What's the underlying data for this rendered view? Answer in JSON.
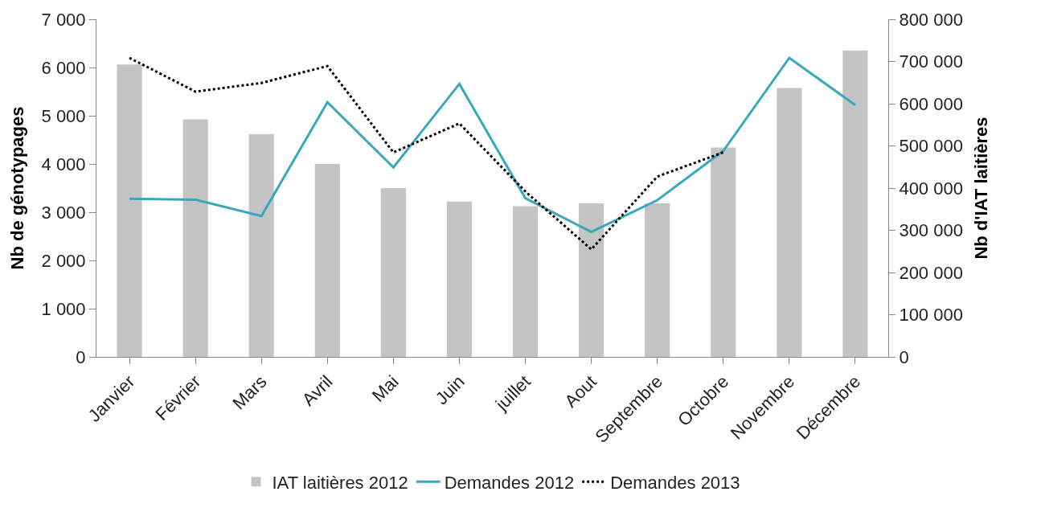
{
  "chart_data": {
    "type": "line",
    "categories": [
      "Janvier",
      "Février",
      "Mars",
      "Avril",
      "Mai",
      "Juin",
      "juillet",
      "Aout",
      "Septembre",
      "Octobre",
      "Novembre",
      "Décembre"
    ],
    "series": [
      {
        "name": "IAT laitières 2012",
        "type": "bar",
        "axis": "y2",
        "color": "#c4c4c4",
        "values": [
          693000,
          563000,
          528000,
          457000,
          400000,
          368000,
          357000,
          364000,
          364000,
          496000,
          637000,
          726000
        ]
      },
      {
        "name": "Demandes 2012",
        "color": "#3aa8bc",
        "line_style": "solid",
        "values": [
          3280,
          3260,
          2920,
          5280,
          3930,
          5660,
          3290,
          2590,
          3250,
          4270,
          6200,
          5220
        ]
      },
      {
        "name": "Demandes 2013",
        "color": "#000000",
        "line_style": "dotted",
        "values": [
          6200,
          5500,
          5680,
          6030,
          4240,
          4840,
          3430,
          2230,
          3740,
          4240,
          null,
          null
        ]
      }
    ],
    "ylabel": "Nb de génotypages",
    "y2label": "Nb d'IAT laitières",
    "ylim": [
      0,
      7000
    ],
    "yticks": [
      {
        "value": 0,
        "label": "0"
      },
      {
        "value": 1000,
        "label": "1 000"
      },
      {
        "value": 2000,
        "label": "2 000"
      },
      {
        "value": 3000,
        "label": "3 000"
      },
      {
        "value": 4000,
        "label": "4 000"
      },
      {
        "value": 5000,
        "label": "5 000"
      },
      {
        "value": 6000,
        "label": "6 000"
      },
      {
        "value": 7000,
        "label": "7 000"
      }
    ],
    "y2lim": [
      0,
      800000
    ],
    "y2ticks": [
      {
        "value": 0,
        "label": "0"
      },
      {
        "value": 100000,
        "label": "100 000"
      },
      {
        "value": 200000,
        "label": "200 000"
      },
      {
        "value": 300000,
        "label": "300 000"
      },
      {
        "value": 400000,
        "label": "400 000"
      },
      {
        "value": 500000,
        "label": "500 000"
      },
      {
        "value": 600000,
        "label": "600 000"
      },
      {
        "value": 700000,
        "label": "700 000"
      },
      {
        "value": 800000,
        "label": "800 000"
      }
    ],
    "legend": "bottom",
    "marker": "none"
  }
}
